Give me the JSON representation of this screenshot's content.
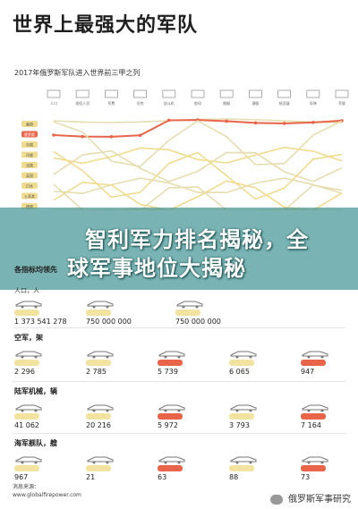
{
  "title": "世界上最强大的军队",
  "subtitle": "2017年俄罗斯军队进入世界前三甲之列",
  "headline": {
    "line1": "智利军力排名揭秘，全",
    "line2": "球军事地位大揭秘"
  },
  "chart": {
    "categories": [
      "人口",
      "现役人员",
      "军费",
      "坦克",
      "战斗机",
      "航母",
      "舰艇",
      "潜艇",
      "核武器",
      "导弹",
      "军舰"
    ],
    "countries": [
      "美国",
      "俄罗斯",
      "中国",
      "印度",
      "法国",
      "英国",
      "日本",
      "土耳其",
      "德国",
      "意大利"
    ],
    "colors": {
      "highlight": "#e8654a",
      "other": "#f0dc8f",
      "muted": "#e6ddb0"
    }
  },
  "sections": [
    {
      "title": "各指标均领先",
      "sub": "人口，人",
      "cells": [
        {
          "icon": "people-icon",
          "value": "1 373 541 278",
          "highlight": false
        },
        {
          "icon": "soldier-icon",
          "value": "750 000 000",
          "highlight": false
        },
        {
          "icon": "reserve-icon",
          "value": "750 000 000",
          "highlight": false
        }
      ]
    },
    {
      "title": "空军，架",
      "sub": "",
      "cells": [
        {
          "icon": "plane-icon",
          "value": "2 296",
          "highlight": false
        },
        {
          "icon": "fighter-icon",
          "value": "2 785",
          "highlight": false
        },
        {
          "icon": "attack-icon",
          "value": "5 739",
          "highlight": true
        },
        {
          "icon": "transport-icon",
          "value": "6 065",
          "highlight": false
        },
        {
          "icon": "helicopter-icon",
          "value": "947",
          "highlight": true
        }
      ]
    },
    {
      "title": "陆军机械，辆",
      "sub": "",
      "cells": [
        {
          "icon": "tank-icon",
          "value": "41 062",
          "highlight": false
        },
        {
          "icon": "apc-icon",
          "value": "20 216",
          "highlight": false
        },
        {
          "icon": "artillery-icon",
          "value": "5 972",
          "highlight": true
        },
        {
          "icon": "rocket-icon",
          "value": "3 793",
          "highlight": false
        },
        {
          "icon": "launcher-icon",
          "value": "7 164",
          "highlight": true
        }
      ]
    },
    {
      "title": "海军舰队，艘",
      "sub": "",
      "cells": [
        {
          "icon": "ship-icon",
          "value": "967",
          "highlight": false
        },
        {
          "icon": "carrier-icon",
          "value": "21",
          "highlight": false
        },
        {
          "icon": "destroyer-icon",
          "value": "63",
          "highlight": true
        },
        {
          "icon": "frigate-icon",
          "value": "88",
          "highlight": false
        },
        {
          "icon": "submarine-icon",
          "value": "73",
          "highlight": true
        }
      ]
    }
  ],
  "footer": {
    "source1": "消息来源：",
    "source2": "www.globalfirepower.com",
    "brand": "俄罗斯军事研究"
  }
}
